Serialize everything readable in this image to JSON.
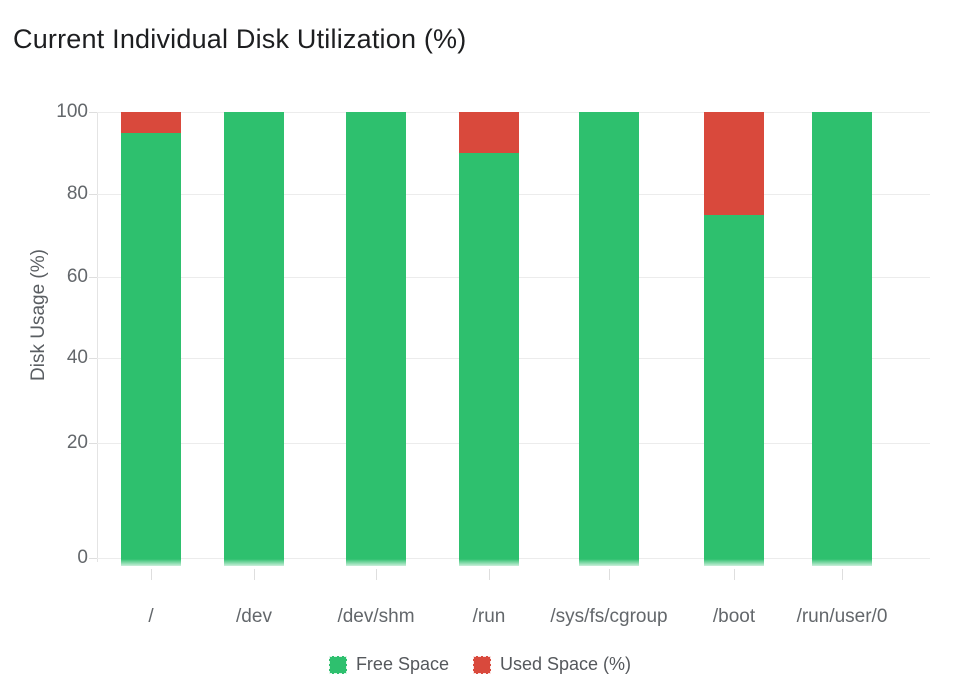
{
  "header": {
    "title": "Current Individual Disk Utilization (%)"
  },
  "chart_data": {
    "type": "bar",
    "stacked": true,
    "title": "Current Individual Disk Utilization (%)",
    "xlabel": "",
    "ylabel": "Disk Usage (%)",
    "categories": [
      "/",
      "/dev",
      "/dev/shm",
      "/run",
      "/sys/fs/cgroup",
      "/boot",
      "/run/user/0"
    ],
    "series": [
      {
        "name": "Free Space",
        "color": "#2ec06e",
        "values": [
          95,
          100,
          100,
          90,
          100,
          75,
          100
        ]
      },
      {
        "name": "Used Space (%)",
        "color": "#d9493c",
        "values": [
          5,
          0,
          0,
          10,
          0,
          25,
          0
        ]
      }
    ],
    "ylim": [
      0,
      100
    ],
    "yticks": [
      0,
      20,
      40,
      60,
      80,
      100
    ],
    "grid": true,
    "legend_position": "bottom"
  }
}
